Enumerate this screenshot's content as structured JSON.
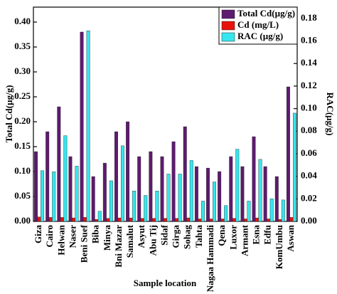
{
  "chart_data": {
    "type": "bar",
    "x_label": "Sample location",
    "y_label": "Total Cd(µg/g)",
    "y2_label": "RAC(µg/g)",
    "categories": [
      "Giza",
      "Cairo",
      "Helwan",
      "Naser",
      "Beni Suef",
      "Biba",
      "Minya",
      "Bni Mazar",
      "Samalut",
      "Asyut",
      "Abu Tij",
      "Sidaf",
      "Girga",
      "Sohag",
      "Tahta",
      "Nagaa Hammadi",
      "Qena",
      "Luxor",
      "Armant",
      "Esna",
      "Edfu",
      "KomUmbu",
      "Aswan"
    ],
    "series": [
      {
        "name": "Total Cd(µg/g)",
        "color": "#5e1a6f",
        "values": [
          0.14,
          0.18,
          0.23,
          0.13,
          0.38,
          0.09,
          0.117,
          0.18,
          0.2,
          0.13,
          0.14,
          0.13,
          0.16,
          0.19,
          0.11,
          0.107,
          0.1,
          0.13,
          0.11,
          0.17,
          0.11,
          0.09,
          0.27
        ]
      },
      {
        "name": "Cd (mg/L)",
        "color": "#e8120c",
        "values": [
          0.009,
          0.008,
          0.008,
          0.007,
          0.008,
          0.004,
          0.006,
          0.007,
          0.007,
          0.006,
          0.006,
          0.006,
          0.006,
          0.007,
          0.005,
          0.005,
          0.005,
          0.006,
          0.005,
          0.007,
          0.005,
          0.004,
          0.008
        ]
      },
      {
        "name": "RAC (µg/g)",
        "color": "#35e6ef",
        "axis": "y2",
        "values": [
          0.045,
          0.044,
          0.076,
          0.049,
          0.169,
          0.009,
          0.036,
          0.067,
          0.027,
          0.023,
          0.027,
          0.042,
          0.042,
          0.054,
          0.018,
          0.035,
          0.014,
          0.064,
          0.018,
          0.055,
          0.02,
          0.019,
          0.096
        ]
      }
    ],
    "ylim": [
      0,
      0.43
    ],
    "yticks": [
      {
        "value": 0,
        "label": "0.00"
      },
      0.05,
      {
        "value": 0.1,
        "label": "0.10"
      },
      0.15,
      {
        "value": 0.2,
        "label": "0.20"
      },
      0.25,
      {
        "value": 0.3,
        "label": "0.30"
      },
      0.35,
      {
        "value": 0.4,
        "label": "0.40"
      }
    ],
    "y2lim": [
      0,
      0.19
    ],
    "y2ticks": [
      {
        "value": 0,
        "label": "0.00"
      },
      0.02,
      0.04,
      0.06,
      0.08,
      {
        "value": 0.1,
        "label": "0.10"
      },
      0.12,
      0.14,
      0.16,
      0.18
    ],
    "legend": "top-right",
    "grid": false
  }
}
